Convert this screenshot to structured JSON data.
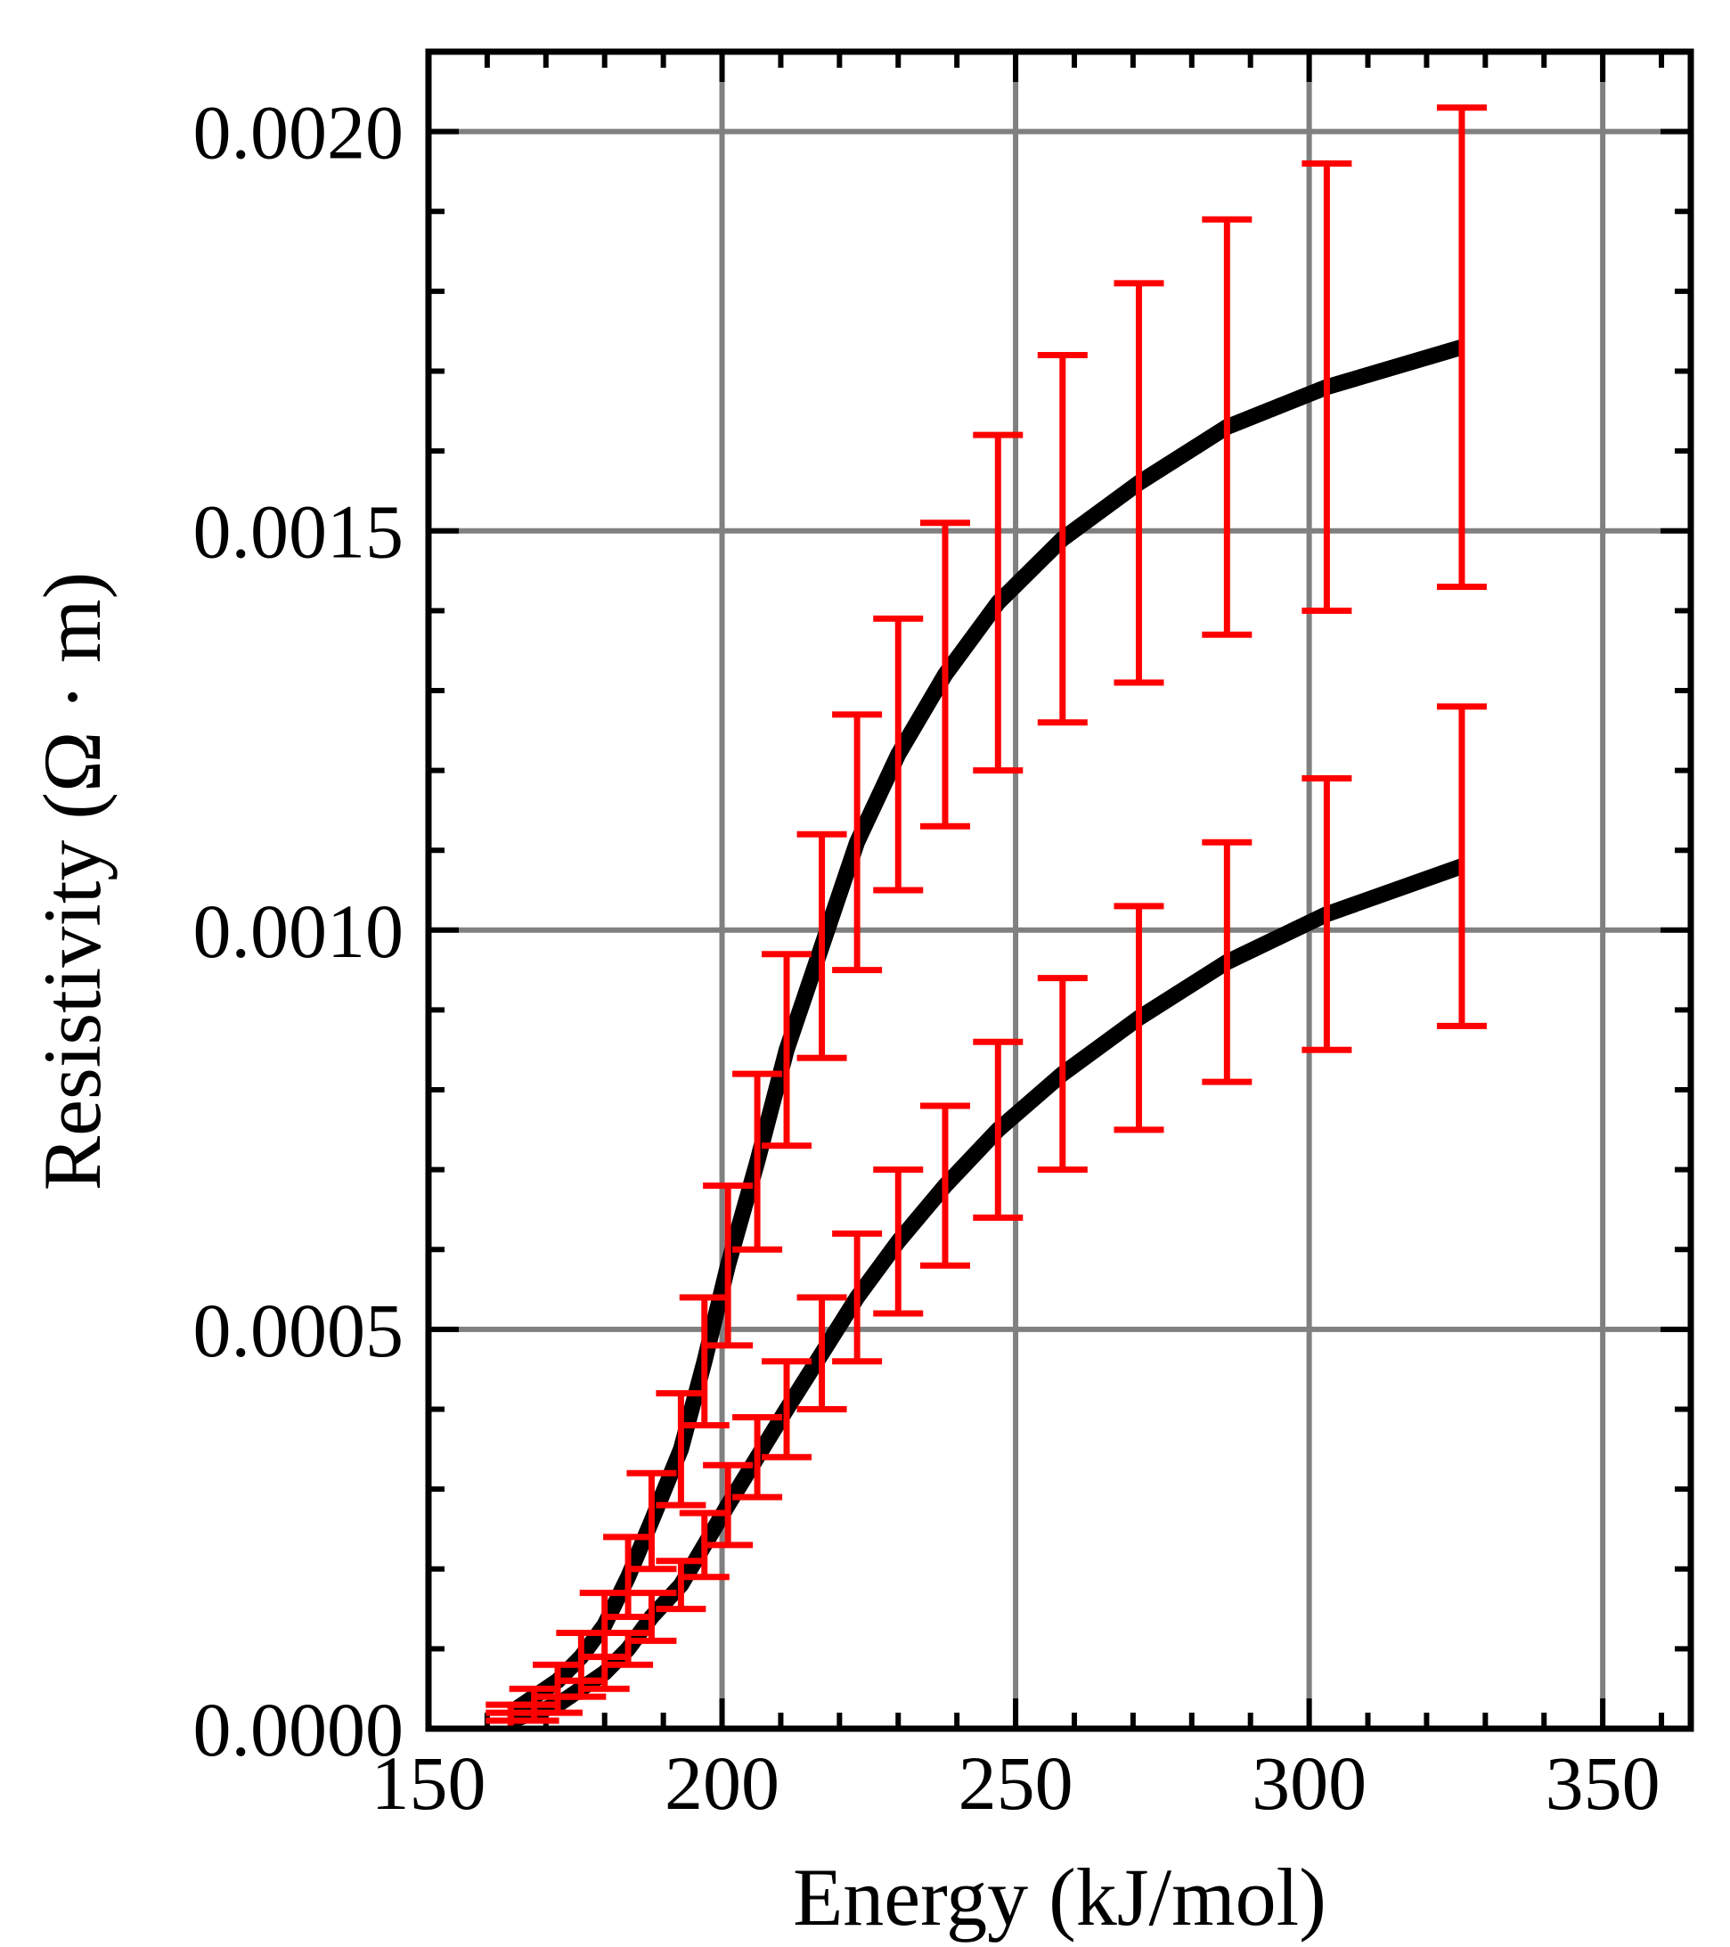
{
  "chart_data": {
    "type": "line",
    "title": "",
    "xlabel": "Energy (kJ/mol)",
    "ylabel": "Resistivity (Ω · m)",
    "xlim": [
      150,
      365
    ],
    "ylim": [
      0.0,
      0.0021
    ],
    "x_ticks": [
      150,
      200,
      250,
      300,
      350
    ],
    "x_tick_labels": [
      "150",
      "200",
      "250",
      "300",
      "350"
    ],
    "y_ticks": [
      0.0,
      0.0005,
      0.001,
      0.0015,
      0.002
    ],
    "y_tick_labels": [
      "0.0000",
      "0.0005",
      "0.0010",
      "0.0015",
      "0.0020"
    ],
    "grid": true,
    "colors": {
      "curve": "#000000",
      "error_bars": "#ff0000",
      "grid": "#808080",
      "frame": "#000000"
    },
    "series": [
      {
        "points": [
          {
            "x": 164,
            "y": 2e-05,
            "err": 1e-05
          },
          {
            "x": 168,
            "y": 4e-05,
            "err": 1e-05
          },
          {
            "x": 172,
            "y": 6e-05,
            "err": 2e-05
          },
          {
            "x": 176,
            "y": 9e-05,
            "err": 3e-05
          },
          {
            "x": 180,
            "y": 0.00013,
            "err": 4e-05
          },
          {
            "x": 184,
            "y": 0.00019,
            "err": 5e-05
          },
          {
            "x": 188,
            "y": 0.00026,
            "err": 6e-05
          },
          {
            "x": 193,
            "y": 0.00035,
            "err": 7e-05
          },
          {
            "x": 197,
            "y": 0.00046,
            "err": 8e-05
          },
          {
            "x": 201,
            "y": 0.00058,
            "err": 0.0001
          },
          {
            "x": 206,
            "y": 0.00071,
            "err": 0.00011
          },
          {
            "x": 211,
            "y": 0.00085,
            "err": 0.00012
          },
          {
            "x": 217,
            "y": 0.00098,
            "err": 0.00014
          },
          {
            "x": 223,
            "y": 0.00111,
            "err": 0.00016
          },
          {
            "x": 230,
            "y": 0.00122,
            "err": 0.00017
          },
          {
            "x": 238,
            "y": 0.00132,
            "err": 0.00019
          },
          {
            "x": 247,
            "y": 0.00141,
            "err": 0.00021
          },
          {
            "x": 258,
            "y": 0.00149,
            "err": 0.00023
          },
          {
            "x": 271,
            "y": 0.00156,
            "err": 0.00025
          },
          {
            "x": 286,
            "y": 0.00163,
            "err": 0.00026
          },
          {
            "x": 303,
            "y": 0.00168,
            "err": 0.00028
          },
          {
            "x": 326,
            "y": 0.00173,
            "err": 0.0003
          }
        ]
      },
      {
        "points": [
          {
            "x": 164,
            "y": 1e-05,
            "err": 1e-05
          },
          {
            "x": 168,
            "y": 2e-05,
            "err": 1e-05
          },
          {
            "x": 172,
            "y": 3e-05,
            "err": 1e-05
          },
          {
            "x": 176,
            "y": 5e-05,
            "err": 1e-05
          },
          {
            "x": 180,
            "y": 7e-05,
            "err": 2e-05
          },
          {
            "x": 184,
            "y": 0.0001,
            "err": 2e-05
          },
          {
            "x": 188,
            "y": 0.00014,
            "err": 3e-05
          },
          {
            "x": 193,
            "y": 0.00018,
            "err": 3e-05
          },
          {
            "x": 197,
            "y": 0.00023,
            "err": 4e-05
          },
          {
            "x": 201,
            "y": 0.00028,
            "err": 5e-05
          },
          {
            "x": 206,
            "y": 0.00034,
            "err": 5e-05
          },
          {
            "x": 211,
            "y": 0.0004,
            "err": 6e-05
          },
          {
            "x": 217,
            "y": 0.00047,
            "err": 7e-05
          },
          {
            "x": 223,
            "y": 0.00054,
            "err": 8e-05
          },
          {
            "x": 230,
            "y": 0.00061,
            "err": 9e-05
          },
          {
            "x": 238,
            "y": 0.00068,
            "err": 0.0001
          },
          {
            "x": 247,
            "y": 0.00075,
            "err": 0.00011
          },
          {
            "x": 258,
            "y": 0.00082,
            "err": 0.00012
          },
          {
            "x": 271,
            "y": 0.00089,
            "err": 0.00014
          },
          {
            "x": 286,
            "y": 0.00096,
            "err": 0.00015
          },
          {
            "x": 303,
            "y": 0.00102,
            "err": 0.00017
          },
          {
            "x": 326,
            "y": 0.00108,
            "err": 0.0002
          }
        ]
      }
    ]
  }
}
